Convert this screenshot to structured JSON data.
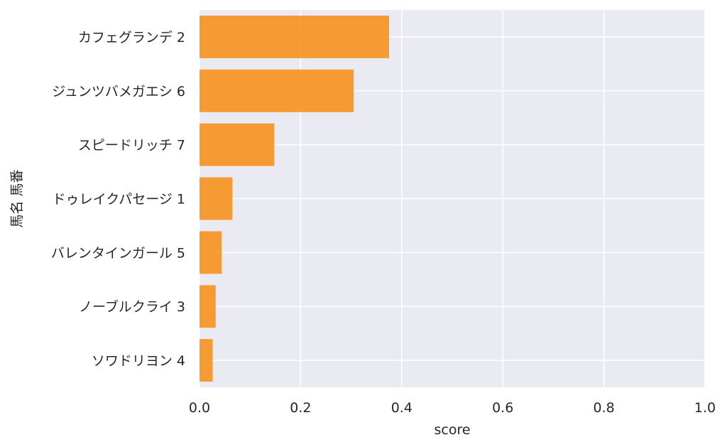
{
  "chart_data": {
    "type": "bar",
    "orientation": "horizontal",
    "categories": [
      "カフェグランデ 2",
      "ジュンツバメガエシ 6",
      "スピードリッチ 7",
      "ドゥレイクパセージ 1",
      "バレンタインガール 5",
      "ノーブルクライ 3",
      "ソワドリヨン 4"
    ],
    "values": [
      0.375,
      0.305,
      0.148,
      0.065,
      0.044,
      0.032,
      0.026
    ],
    "xlabel": "score",
    "ylabel": "馬名 馬番",
    "xlim": [
      0,
      1
    ],
    "xticks": [
      "0.0",
      "0.2",
      "0.4",
      "0.6",
      "0.8",
      "1.0"
    ],
    "grid": true,
    "bar_color": "#f7921e",
    "plot_background": "#eaeaf2",
    "grid_color": "#ffffff"
  }
}
